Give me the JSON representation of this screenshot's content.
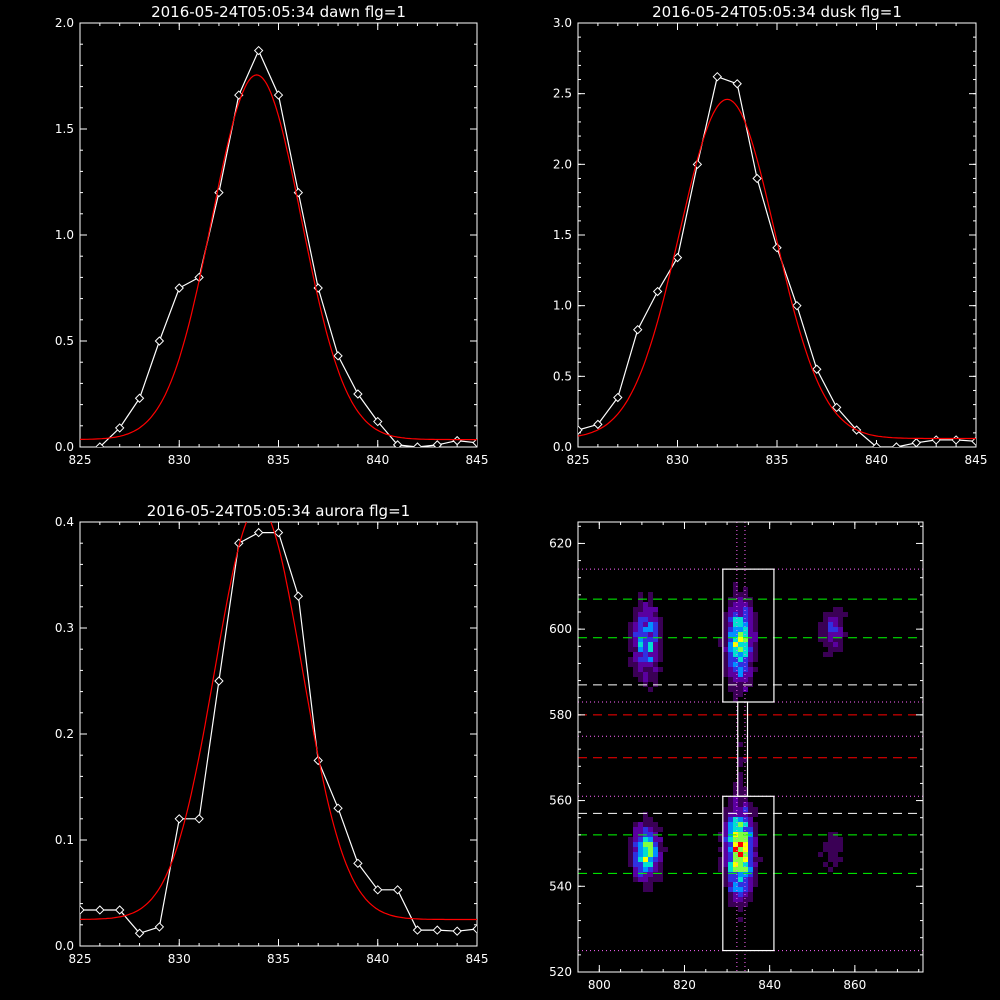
{
  "chart_data": [
    {
      "type": "line",
      "title": "2016-05-24T05:05:34 dawn flg=1",
      "xlim": [
        825,
        845
      ],
      "ylim": [
        0,
        2.0
      ],
      "xticks": [
        "825",
        "830",
        "835",
        "840",
        "845"
      ],
      "yticks": [
        "0.0",
        "0.5",
        "1.0",
        "1.5",
        "2.0"
      ],
      "x": [
        826,
        827,
        828,
        829,
        830,
        831,
        832,
        833,
        834,
        835,
        836,
        837,
        838,
        839,
        840,
        841,
        842,
        843,
        844,
        845
      ],
      "series": [
        {
          "values": [
            0.0,
            0.09,
            0.23,
            0.5,
            0.75,
            0.8,
            1.2,
            1.66,
            1.87,
            1.66,
            1.2,
            0.75,
            0.43,
            0.25,
            0.12,
            0.01,
            0.0,
            0.01,
            0.03,
            0.02
          ],
          "color": "#ffffff",
          "markers": "diamond"
        },
        {
          "model": "gaussian",
          "peak_x": 833.9,
          "amplitude": 1.72,
          "sigma": 2.25,
          "baseline": 0.035,
          "color": "#ff0000"
        }
      ]
    },
    {
      "type": "line",
      "title": "2016-05-24T05:05:34 dusk flg=1",
      "xlim": [
        825,
        845
      ],
      "ylim": [
        0,
        3.0
      ],
      "xticks": [
        "825",
        "830",
        "835",
        "840",
        "845"
      ],
      "yticks": [
        "0.0",
        "0.5",
        "1.0",
        "1.5",
        "2.0",
        "2.5",
        "3.0"
      ],
      "x": [
        825,
        826,
        827,
        828,
        829,
        830,
        831,
        832,
        833,
        834,
        835,
        836,
        837,
        838,
        839,
        840,
        841,
        842,
        843,
        844,
        845
      ],
      "series": [
        {
          "values": [
            0.12,
            0.16,
            0.35,
            0.83,
            1.1,
            1.34,
            2.0,
            2.62,
            2.57,
            1.9,
            1.41,
            1.0,
            0.55,
            0.28,
            0.12,
            0.0,
            0.0,
            0.03,
            0.05,
            0.05,
            0.04
          ],
          "color": "#ffffff",
          "markers": "diamond"
        },
        {
          "model": "gaussian",
          "peak_x": 832.5,
          "amplitude": 2.4,
          "sigma": 2.4,
          "baseline": 0.06,
          "color": "#ff0000"
        }
      ]
    },
    {
      "type": "line",
      "title": "2016-05-24T05:05:34 aurora flg=1",
      "xlim": [
        825,
        845
      ],
      "ylim": [
        0,
        0.4
      ],
      "xticks": [
        "825",
        "830",
        "835",
        "840",
        "845"
      ],
      "yticks": [
        "0.0",
        "0.1",
        "0.2",
        "0.3",
        "0.4"
      ],
      "x": [
        825,
        826,
        827,
        828,
        829,
        830,
        831,
        832,
        833,
        834,
        835,
        836,
        837,
        838,
        839,
        840,
        841,
        842,
        843,
        844,
        845
      ],
      "series": [
        {
          "values": [
            0.034,
            0.034,
            0.034,
            0.012,
            0.018,
            0.12,
            0.12,
            0.25,
            0.38,
            0.39,
            0.39,
            0.33,
            0.175,
            0.13,
            0.078,
            0.053,
            0.053,
            0.015,
            0.015,
            0.014,
            0.016
          ],
          "color": "#ffffff",
          "markers": "diamond"
        },
        {
          "model": "gaussian",
          "peak_x": 834.0,
          "amplitude": 0.39,
          "sigma": 2.2,
          "baseline": 0.025,
          "color": "#ff0000"
        }
      ]
    },
    {
      "type": "heatmap",
      "title": "",
      "xlim": [
        795,
        876
      ],
      "ylim": [
        520,
        625
      ],
      "xticks": [
        "800",
        "820",
        "840",
        "860"
      ],
      "yticks": [
        "520",
        "540",
        "560",
        "580",
        "600",
        "620"
      ],
      "colormap": [
        "#000000",
        "#3a0055",
        "#5a00a0",
        "#3030e0",
        "#0090ff",
        "#00e0d0",
        "#80ff40",
        "#ffff00",
        "#ff0000"
      ],
      "blobs": [
        {
          "x": 811,
          "y": 597,
          "sx": 2.3,
          "sy": 6,
          "amp": 0.6
        },
        {
          "x": 811,
          "y": 548,
          "sx": 2.3,
          "sy": 4.5,
          "amp": 0.72
        },
        {
          "x": 833,
          "y": 597,
          "sx": 2.3,
          "sy": 6.5,
          "amp": 0.78
        },
        {
          "x": 833,
          "y": 548,
          "sx": 2.3,
          "sy": 7,
          "amp": 0.95
        },
        {
          "x": 855,
          "y": 600,
          "sx": 2.3,
          "sy": 4,
          "amp": 0.35
        },
        {
          "x": 855,
          "y": 548,
          "sx": 2.3,
          "sy": 4,
          "amp": 0.2
        },
        {
          "x": 833,
          "y": 570,
          "sx": 1.5,
          "sy": 8,
          "amp": 0.12
        }
      ],
      "boxes": [
        {
          "x0": 829,
          "x1": 841,
          "y0": 583,
          "y1": 614,
          "color": "#ffffff"
        },
        {
          "x0": 829,
          "x1": 841,
          "y0": 525,
          "y1": 561,
          "color": "#ffffff"
        },
        {
          "x0": 832.5,
          "x1": 834.8,
          "y0": 561,
          "y1": 583,
          "color": "#ffffff"
        }
      ],
      "hlines": [
        {
          "y": 614,
          "color": "#ff66ff",
          "style": "dotted"
        },
        {
          "y": 607,
          "color": "#00ff00",
          "style": "dashed"
        },
        {
          "y": 598,
          "color": "#00ff00",
          "style": "dashed"
        },
        {
          "y": 587,
          "color": "#ffffff",
          "style": "dashed"
        },
        {
          "y": 583,
          "color": "#ff66ff",
          "style": "dotted"
        },
        {
          "y": 580,
          "color": "#ff0000",
          "style": "dashed"
        },
        {
          "y": 575,
          "color": "#ff66ff",
          "style": "dotted"
        },
        {
          "y": 570,
          "color": "#ff0000",
          "style": "dashed"
        },
        {
          "y": 561,
          "color": "#ff66ff",
          "style": "dotted"
        },
        {
          "y": 557,
          "color": "#ffffff",
          "style": "dashed"
        },
        {
          "y": 552,
          "color": "#00ff00",
          "style": "dashed"
        },
        {
          "y": 543,
          "color": "#00ff00",
          "style": "dashed"
        },
        {
          "y": 525,
          "color": "#ff66ff",
          "style": "dotted"
        }
      ],
      "vlines": [
        {
          "x": 832.3,
          "color": "#ff66ff",
          "style": "dotted"
        },
        {
          "x": 834.2,
          "color": "#ff66ff",
          "style": "dotted"
        }
      ]
    }
  ]
}
